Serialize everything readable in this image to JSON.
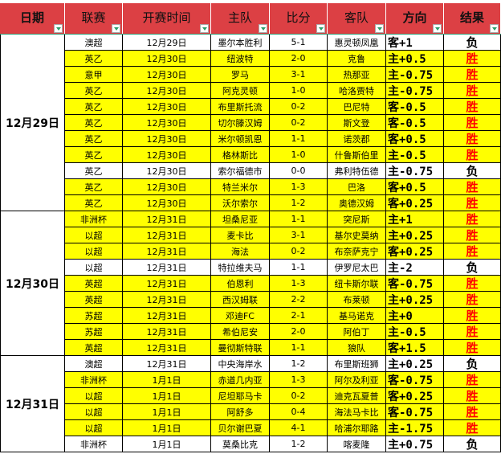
{
  "headers": [
    "日期",
    "联赛",
    "开赛时间",
    "主队",
    "比分",
    "客队",
    "方向",
    "结果"
  ],
  "colors": {
    "header": "#dc4044",
    "highlight": "#ffff00",
    "win": "#ff0000"
  },
  "groups": [
    {
      "date": "12月29日",
      "rows": [
        [
          "澳超",
          "12月29日",
          "墨尔本胜利",
          "5-1",
          "惠灵顿凤凰",
          "客+1",
          "负"
        ],
        [
          "英乙",
          "12月30日",
          "纽波特",
          "2-0",
          "克鲁",
          "主+0.5",
          "胜"
        ],
        [
          "意甲",
          "12月30日",
          "罗马",
          "3-1",
          "热那亚",
          "主-0.75",
          "胜"
        ],
        [
          "英乙",
          "12月30日",
          "阿克灵顿",
          "1-0",
          "哈洛贾特",
          "主-0.75",
          "胜"
        ],
        [
          "英乙",
          "12月30日",
          "布里斯托流",
          "0-2",
          "巴尼特",
          "客-0.5",
          "胜"
        ],
        [
          "英乙",
          "12月30日",
          "切尔滕汉姆",
          "0-2",
          "斯文登",
          "客-0.5",
          "胜"
        ],
        [
          "英乙",
          "12月30日",
          "米尔顿凯恩",
          "1-1",
          "诺茨郡",
          "客+0.5",
          "胜"
        ],
        [
          "英乙",
          "12月30日",
          "格林斯比",
          "1-0",
          "什鲁斯伯里",
          "主-0.5",
          "胜"
        ],
        [
          "英乙",
          "12月30日",
          "索尔福德市",
          "0-0",
          "弗利特伍德",
          "主-0.75",
          "负"
        ],
        [
          "英乙",
          "12月30日",
          "特兰米尔",
          "1-3",
          "巴洛",
          "客+0.5",
          "胜"
        ],
        [
          "英乙",
          "12月30日",
          "沃尔索尔",
          "1-2",
          "奥德汉姆",
          "客+0.25",
          "胜"
        ]
      ]
    },
    {
      "date": "12月30日",
      "rows": [
        [
          "非洲杯",
          "12月31日",
          "坦桑尼亚",
          "1-1",
          "突尼斯",
          "主+1",
          "胜"
        ],
        [
          "以超",
          "12月31日",
          "麦卡比",
          "3-1",
          "基尔史莫纳",
          "主+0.25",
          "胜"
        ],
        [
          "以超",
          "12月31日",
          "海法",
          "0-2",
          "布奈萨克宁",
          "客+0.25",
          "胜"
        ],
        [
          "以超",
          "12月31日",
          "特拉维夫马",
          "1-1",
          "伊罗尼太巴",
          "主-2",
          "负"
        ],
        [
          "英超",
          "12月31日",
          "伯恩利",
          "1-3",
          "纽卡斯尔联",
          "客-0.75",
          "胜"
        ],
        [
          "英超",
          "12月31日",
          "西汉姆联",
          "2-2",
          "布莱顿",
          "主+0.25",
          "胜"
        ],
        [
          "苏超",
          "12月31日",
          "邓迪FC",
          "2-1",
          "基马诺克",
          "主+0",
          "胜"
        ],
        [
          "苏超",
          "12月31日",
          "希伯尼安",
          "2-0",
          "阿伯丁",
          "主-0.5",
          "胜"
        ],
        [
          "英超",
          "12月31日",
          "曼彻斯特联",
          "1-1",
          "狼队",
          "客+1.5",
          "胜"
        ]
      ]
    },
    {
      "date": "12月31日",
      "rows": [
        [
          "澳超",
          "12月31日",
          "中央海岸水",
          "1-2",
          "布里斯班狮",
          "主+0.25",
          "负"
        ],
        [
          "非洲杯",
          "1月1日",
          "赤道几内亚",
          "1-3",
          "阿尔及利亚",
          "客-0.75",
          "胜"
        ],
        [
          "以超",
          "1月1日",
          "尼坦耶马卡",
          "0-2",
          "迪克瓦夏普",
          "客+0.25",
          "胜"
        ],
        [
          "以超",
          "1月1日",
          "阿舒多",
          "0-4",
          "海法马卡比",
          "客-0.75",
          "胜"
        ],
        [
          "以超",
          "1月1日",
          "贝尔谢巴夏",
          "4-1",
          "哈浦尔耶路",
          "主-1.75",
          "胜"
        ],
        [
          "非洲杯",
          "1月1日",
          "莫桑比克",
          "1-2",
          "喀麦隆",
          "主+0.75",
          "负"
        ]
      ]
    }
  ]
}
